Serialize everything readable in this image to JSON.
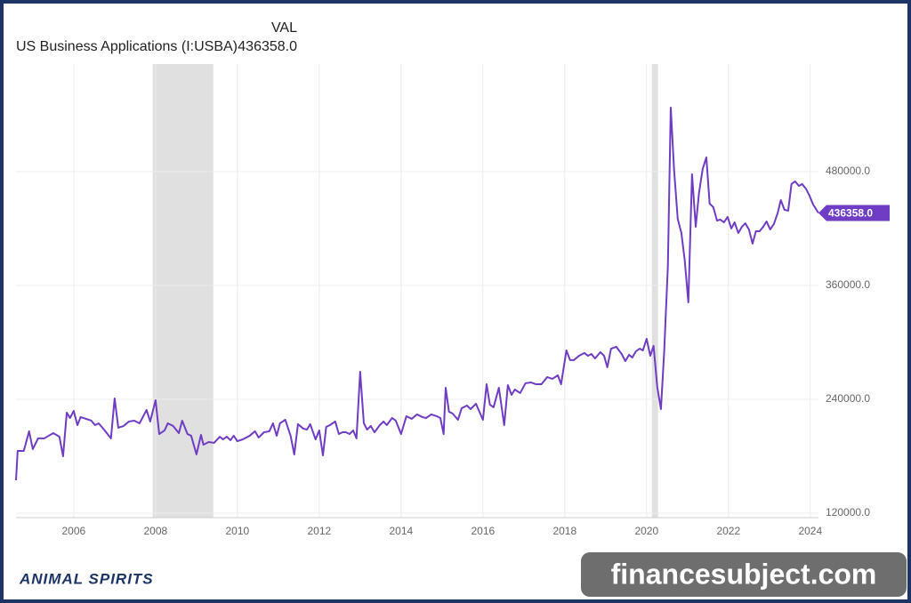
{
  "chart_data": {
    "type": "line",
    "header_label": "VAL",
    "title": "US Business Applications (I:USBA)",
    "current": {
      "value": 436358,
      "label": "436358.0"
    },
    "xlim": [
      2004.59,
      2024.2
    ],
    "xticks": [
      2006,
      2008,
      2010,
      2012,
      2014,
      2016,
      2018,
      2020,
      2022,
      2024
    ],
    "ylim": [
      115300,
      593400
    ],
    "yticks": [
      {
        "value": 120000,
        "label": "120000.0"
      },
      {
        "value": 240000,
        "label": "240000.0"
      },
      {
        "value": 360000,
        "label": "360000.0"
      },
      {
        "value": 480000,
        "label": "480000.0"
      }
    ],
    "grid": true,
    "shaded_periods": [
      [
        2007.93,
        2009.41
      ],
      [
        2020.13,
        2020.28
      ]
    ],
    "shade_color": "#e0e0e0",
    "series": [
      {
        "name": "US Business Applications (I:USBA)",
        "color": "#6f3cc4",
        "x": [
          2004.59,
          2004.63,
          2004.78,
          2004.91,
          2005.0,
          2005.13,
          2005.28,
          2005.39,
          2005.5,
          2005.65,
          2005.74,
          2005.83,
          2005.91,
          2006.0,
          2006.09,
          2006.17,
          2006.3,
          2006.43,
          2006.52,
          2006.61,
          2006.74,
          2006.91,
          2007.0,
          2007.09,
          2007.22,
          2007.35,
          2007.48,
          2007.61,
          2007.78,
          2007.87,
          2008.0,
          2008.09,
          2008.22,
          2008.3,
          2008.43,
          2008.57,
          2008.65,
          2008.78,
          2008.87,
          2009.0,
          2009.11,
          2009.17,
          2009.3,
          2009.43,
          2009.57,
          2009.65,
          2009.74,
          2009.83,
          2009.91,
          2010.0,
          2010.13,
          2010.3,
          2010.43,
          2010.52,
          2010.65,
          2010.78,
          2010.87,
          2010.96,
          2011.04,
          2011.17,
          2011.3,
          2011.39,
          2011.48,
          2011.61,
          2011.7,
          2011.78,
          2011.91,
          2012.0,
          2012.09,
          2012.17,
          2012.26,
          2012.39,
          2012.48,
          2012.57,
          2012.65,
          2012.74,
          2012.83,
          2012.91,
          2013.0,
          2013.09,
          2013.17,
          2013.26,
          2013.35,
          2013.48,
          2013.57,
          2013.65,
          2013.78,
          2013.87,
          2014.0,
          2014.13,
          2014.26,
          2014.39,
          2014.52,
          2014.61,
          2014.74,
          2014.87,
          2014.96,
          2015.04,
          2015.09,
          2015.17,
          2015.26,
          2015.39,
          2015.48,
          2015.61,
          2015.7,
          2015.83,
          2016.0,
          2016.09,
          2016.17,
          2016.26,
          2016.39,
          2016.52,
          2016.61,
          2016.7,
          2016.78,
          2016.91,
          2017.04,
          2017.17,
          2017.3,
          2017.43,
          2017.57,
          2017.7,
          2017.83,
          2017.91,
          2018.04,
          2018.13,
          2018.22,
          2018.35,
          2018.48,
          2018.57,
          2018.65,
          2018.74,
          2018.87,
          2018.96,
          2019.04,
          2019.13,
          2019.26,
          2019.39,
          2019.48,
          2019.57,
          2019.65,
          2019.74,
          2019.83,
          2019.91,
          2020.0,
          2020.09,
          2020.17,
          2020.26,
          2020.35,
          2020.43,
          2020.52,
          2020.59,
          2020.67,
          2020.76,
          2020.85,
          2020.93,
          2021.02,
          2021.11,
          2021.2,
          2021.28,
          2021.37,
          2021.46,
          2021.54,
          2021.63,
          2021.72,
          2021.8,
          2021.89,
          2021.98,
          2022.07,
          2022.15,
          2022.24,
          2022.33,
          2022.41,
          2022.5,
          2022.59,
          2022.67,
          2022.76,
          2022.85,
          2022.93,
          2023.02,
          2023.11,
          2023.2,
          2023.28,
          2023.37,
          2023.46,
          2023.54,
          2023.63,
          2023.72,
          2023.8,
          2023.89,
          2023.98,
          2024.07,
          2024.2
        ],
        "values": [
          154700,
          185600,
          185600,
          206300,
          187500,
          198800,
          198800,
          201600,
          204400,
          200600,
          180000,
          225900,
          220300,
          227800,
          212800,
          221300,
          219400,
          217500,
          212800,
          214700,
          208100,
          198800,
          240900,
          210000,
          211900,
          216600,
          217500,
          214700,
          228800,
          216600,
          239100,
          203400,
          207200,
          214700,
          211900,
          204400,
          217500,
          203400,
          201600,
          181900,
          202500,
          192200,
          195000,
          194100,
          200600,
          197800,
          200600,
          196900,
          201600,
          195900,
          197800,
          201600,
          206300,
          199700,
          205300,
          206300,
          214700,
          201600,
          214700,
          218400,
          201600,
          181900,
          213800,
          209100,
          208100,
          213800,
          197800,
          207200,
          180900,
          210900,
          212800,
          216600,
          203400,
          205300,
          205300,
          203400,
          207200,
          198800,
          269100,
          214700,
          208100,
          211900,
          205300,
          212800,
          216600,
          212800,
          220300,
          217500,
          203400,
          222200,
          219400,
          224100,
          221300,
          220300,
          224100,
          222200,
          220300,
          203400,
          252200,
          226900,
          225000,
          218400,
          230600,
          233400,
          229700,
          235300,
          218400,
          255900,
          234400,
          231600,
          252200,
          212800,
          255000,
          244700,
          250300,
          246600,
          256900,
          257800,
          255900,
          255900,
          263400,
          261600,
          265300,
          255900,
          291600,
          281300,
          281300,
          285900,
          288800,
          285900,
          287800,
          283100,
          289700,
          285900,
          273800,
          293400,
          295300,
          287800,
          280300,
          286900,
          284100,
          290600,
          293400,
          291600,
          303800,
          285900,
          296300,
          253100,
          229700,
          290600,
          380600,
          547500,
          482800,
          430300,
          415300,
          387200,
          342200,
          477200,
          421900,
          457500,
          482800,
          495000,
          446300,
          442500,
          428400,
          429400,
          426600,
          432200,
          420000,
          426600,
          415300,
          421900,
          425600,
          419100,
          404100,
          417200,
          417200,
          421900,
          427500,
          419100,
          424700,
          435900,
          450000,
          439700,
          438800,
          466900,
          469700,
          465000,
          466900,
          462200,
          454700,
          445300,
          436358
        ]
      }
    ]
  },
  "logo": "ANIMAL SPIRITS",
  "watermark": "financesubject.com"
}
